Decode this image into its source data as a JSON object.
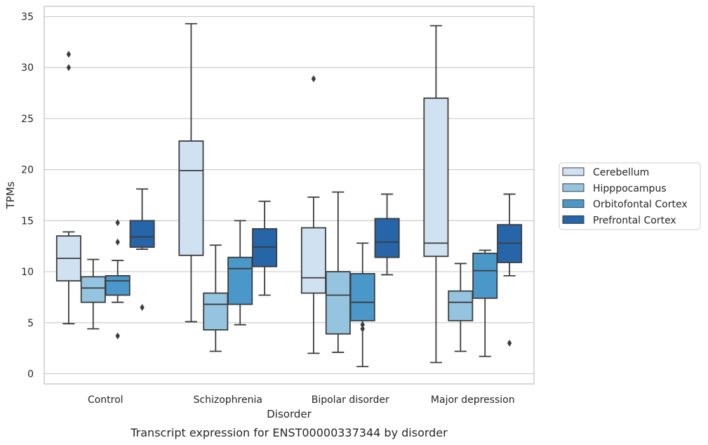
{
  "chart_data": {
    "type": "box",
    "caption": "Transcript expression for ENST00000337344 by disorder",
    "xlabel": "Disorder",
    "ylabel": "TPMs",
    "ylim": [
      -1,
      36
    ],
    "yticks": [
      0,
      5,
      10,
      15,
      20,
      25,
      30,
      35
    ],
    "grid": true,
    "legend_position": "right",
    "categories": [
      "Control",
      "Schizophrenia",
      "Bipolar disorder",
      "Major depression"
    ],
    "series": [
      {
        "name": "Cerebellum",
        "color": "#d0e1f2",
        "boxes": [
          {
            "whislo": 4.9,
            "q1": 9.1,
            "med": 11.3,
            "q3": 13.5,
            "whishi": 13.9,
            "fliers": [
              30.0,
              31.3
            ]
          },
          {
            "whislo": 5.1,
            "q1": 11.6,
            "med": 19.9,
            "q3": 22.8,
            "whishi": 34.3,
            "fliers": []
          },
          {
            "whislo": 2.0,
            "q1": 7.9,
            "med": 9.4,
            "q3": 14.3,
            "whishi": 17.3,
            "fliers": [
              28.9
            ]
          },
          {
            "whislo": 1.1,
            "q1": 11.5,
            "med": 12.8,
            "q3": 27.0,
            "whishi": 34.1,
            "fliers": []
          }
        ]
      },
      {
        "name": "Hipppocampus",
        "color": "#94c4df",
        "boxes": [
          {
            "whislo": 4.4,
            "q1": 7.0,
            "med": 8.4,
            "q3": 9.5,
            "whishi": 11.2,
            "fliers": []
          },
          {
            "whislo": 2.2,
            "q1": 4.3,
            "med": 6.8,
            "q3": 7.9,
            "whishi": 12.6,
            "fliers": []
          },
          {
            "whislo": 2.1,
            "q1": 3.9,
            "med": 7.7,
            "q3": 10.0,
            "whishi": 17.8,
            "fliers": []
          },
          {
            "whislo": 2.2,
            "q1": 5.2,
            "med": 7.0,
            "q3": 8.1,
            "whishi": 10.8,
            "fliers": []
          }
        ]
      },
      {
        "name": "Orbitofontal Cortex",
        "color": "#4a98c9",
        "boxes": [
          {
            "whislo": 7.0,
            "q1": 7.7,
            "med": 9.1,
            "q3": 9.6,
            "whishi": 11.1,
            "fliers": [
              3.7,
              12.9,
              14.8
            ]
          },
          {
            "whislo": 4.8,
            "q1": 6.8,
            "med": 10.3,
            "q3": 11.4,
            "whishi": 15.0,
            "fliers": []
          },
          {
            "whislo": 0.7,
            "q1": 5.2,
            "med": 7.0,
            "q3": 9.8,
            "whishi": 12.8,
            "fliers": [
              4.4,
              4.8
            ]
          },
          {
            "whislo": 1.7,
            "q1": 7.4,
            "med": 10.1,
            "q3": 11.8,
            "whishi": 12.1,
            "fliers": []
          }
        ]
      },
      {
        "name": "Prefrontal Cortex",
        "color": "#2565a8",
        "boxes": [
          {
            "whislo": 12.2,
            "q1": 12.4,
            "med": 13.4,
            "q3": 15.0,
            "whishi": 18.1,
            "fliers": [
              6.5
            ]
          },
          {
            "whislo": 7.7,
            "q1": 10.5,
            "med": 12.4,
            "q3": 14.2,
            "whishi": 16.9,
            "fliers": []
          },
          {
            "whislo": 9.7,
            "q1": 11.4,
            "med": 12.9,
            "q3": 15.2,
            "whishi": 17.6,
            "fliers": []
          },
          {
            "whislo": 9.6,
            "q1": 10.9,
            "med": 12.8,
            "q3": 14.6,
            "whishi": 17.6,
            "fliers": [
              3.0
            ]
          }
        ]
      }
    ]
  }
}
